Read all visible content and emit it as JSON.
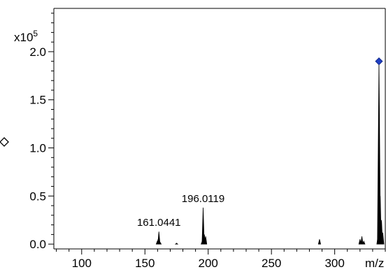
{
  "chart_data": {
    "type": "line",
    "title": "",
    "xlabel": "m/z",
    "ylabel": "",
    "y_multiplier_label": "x10",
    "y_multiplier_exponent": "5",
    "xlim": [
      78,
      340
    ],
    "ylim": [
      -0.05,
      2.45
    ],
    "x_ticks": [
      100,
      150,
      200,
      250,
      300
    ],
    "x_tick_labels": [
      "100",
      "150",
      "200",
      "250",
      "300"
    ],
    "y_ticks": [
      0.0,
      0.5,
      1.0,
      1.5,
      2.0
    ],
    "y_tick_labels": [
      "0.0",
      "0.5",
      "1.0",
      "1.5",
      "2.0"
    ],
    "grid": false,
    "legend": "none",
    "line_color": "#000000",
    "marker_color": "#1f3fc2",
    "series": [
      {
        "name": "",
        "peaks": [
          {
            "x": 159.8,
            "y": 0.03
          },
          {
            "x": 160.4,
            "y": 0.05
          },
          {
            "x": 161.0441,
            "y": 0.13
          },
          {
            "x": 162.0,
            "y": 0.02
          },
          {
            "x": 175.0,
            "y": 0.01
          },
          {
            "x": 195.3,
            "y": 0.03
          },
          {
            "x": 196.0119,
            "y": 0.38
          },
          {
            "x": 197.0,
            "y": 0.1
          },
          {
            "x": 198.0,
            "y": 0.08
          },
          {
            "x": 288.0,
            "y": 0.05
          },
          {
            "x": 320.0,
            "y": 0.05
          },
          {
            "x": 321.5,
            "y": 0.08
          },
          {
            "x": 323.0,
            "y": 0.03
          },
          {
            "x": 334.2,
            "y": 0.08
          },
          {
            "x": 335.0,
            "y": 1.9
          },
          {
            "x": 336.0,
            "y": 0.5
          },
          {
            "x": 337.0,
            "y": 0.25
          },
          {
            "x": 338.0,
            "y": 0.12
          }
        ]
      }
    ],
    "annotations": [
      {
        "text": "196.0119",
        "x": 196.0119,
        "y": 0.38
      },
      {
        "text": "161.0441",
        "x": 161.0441,
        "y": 0.13
      }
    ],
    "markers": [
      {
        "x": 335.0,
        "y": 1.9,
        "shape": "diamond"
      }
    ]
  }
}
